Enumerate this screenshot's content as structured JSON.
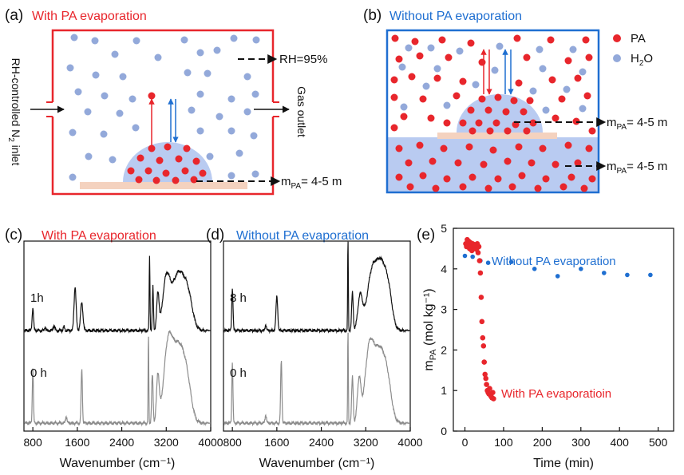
{
  "colors": {
    "red": "#e8262c",
    "blue": "#1f6fd1",
    "light_blue": "#93a9da",
    "fill_blue": "#b9cbf1",
    "substrate": "#f4d2bf",
    "gray": "#8c8c8c",
    "black": "#111111"
  },
  "panel_a": {
    "letter": "(a)",
    "title": "With PA evaporation",
    "left_label": "RH-controlled N",
    "left_label_sub": "2",
    "left_label_end": " inlet",
    "right_label": "Gas outlet",
    "rh_label": "RH=95%",
    "mpa_prefix": "m",
    "mpa_sub": "PA",
    "mpa_value": "= 4-5 m"
  },
  "panel_b": {
    "letter": "(b)",
    "title": "Without PA evaporation",
    "legend": {
      "pa": "PA",
      "h2o_prefix": "H",
      "h2o_sub": "2",
      "h2o_end": "O"
    },
    "mpa_prefix": "m",
    "mpa_sub": "PA",
    "mpa_value_top": "= 4-5 m",
    "mpa_value_bottom": "= 4-5 m"
  },
  "chart_data": [
    {
      "type": "line",
      "panel": "(c)",
      "title": "With PA evaporation",
      "xlabel": "Wavenumber (cm⁻¹)",
      "ylabel": "",
      "xlim": [
        640,
        4000
      ],
      "xticks": [
        800,
        1600,
        2400,
        3200,
        4000
      ],
      "xtick_labels": [
        "800",
        "1600",
        "2400",
        "3200",
        "4000"
      ],
      "series": [
        {
          "name": "1h",
          "color": "#111111"
        },
        {
          "name": "0 h",
          "color": "#8c8c8c"
        }
      ]
    },
    {
      "type": "line",
      "panel": "(d)",
      "title": "Without PA evaporation",
      "xlabel": "Wavenumber (cm⁻¹)",
      "ylabel": "",
      "xlim": [
        640,
        4000
      ],
      "xticks": [
        800,
        1600,
        2400,
        3200,
        4000
      ],
      "xtick_labels": [
        "800",
        "1600",
        "2400",
        "3200",
        "4000"
      ],
      "series": [
        {
          "name": "8 h",
          "color": "#111111"
        },
        {
          "name": "0 h",
          "color": "#8c8c8c"
        }
      ]
    },
    {
      "type": "scatter",
      "panel": "(e)",
      "xlabel": "Time (min)",
      "ylabel_prefix": "m",
      "ylabel_sub": "PA",
      "ylabel_suffix": " (mol kg⁻¹)",
      "xlim": [
        -30,
        540
      ],
      "ylim": [
        0,
        5
      ],
      "xticks": [
        0,
        100,
        200,
        300,
        400,
        500
      ],
      "yticks": [
        0,
        1,
        2,
        3,
        4,
        5
      ],
      "series": [
        {
          "name": "Without PA evaporation",
          "color": "#1f6fd1",
          "points": [
            [
              0,
              4.32
            ],
            [
              20,
              4.3
            ],
            [
              40,
              4.2
            ],
            [
              60,
              4.15
            ],
            [
              120,
              4.17
            ],
            [
              180,
              4.0
            ],
            [
              240,
              3.82
            ],
            [
              300,
              4.0
            ],
            [
              360,
              3.9
            ],
            [
              420,
              3.85
            ],
            [
              480,
              3.85
            ]
          ]
        },
        {
          "name": "With PA evaporatioin",
          "color": "#e8262c",
          "points": [
            [
              2,
              4.62
            ],
            [
              4,
              4.55
            ],
            [
              6,
              4.72
            ],
            [
              8,
              4.6
            ],
            [
              10,
              4.68
            ],
            [
              12,
              4.5
            ],
            [
              14,
              4.65
            ],
            [
              16,
              4.58
            ],
            [
              18,
              4.45
            ],
            [
              20,
              4.62
            ],
            [
              22,
              4.55
            ],
            [
              24,
              4.6
            ],
            [
              26,
              4.5
            ],
            [
              28,
              4.58
            ],
            [
              30,
              4.48
            ],
            [
              32,
              4.62
            ],
            [
              34,
              4.4
            ],
            [
              36,
              4.55
            ],
            [
              38,
              4.2
            ],
            [
              40,
              3.9
            ],
            [
              42,
              3.3
            ],
            [
              44,
              2.7
            ],
            [
              46,
              2.3
            ],
            [
              48,
              2.1
            ],
            [
              50,
              1.7
            ],
            [
              52,
              1.4
            ],
            [
              54,
              1.3
            ],
            [
              56,
              1.15
            ],
            [
              58,
              1.0
            ],
            [
              60,
              0.95
            ],
            [
              62,
              0.92
            ],
            [
              64,
              1.05
            ],
            [
              66,
              0.88
            ],
            [
              68,
              0.85
            ],
            [
              70,
              0.82
            ],
            [
              72,
              0.95
            ],
            [
              74,
              0.8
            ]
          ]
        }
      ]
    }
  ]
}
